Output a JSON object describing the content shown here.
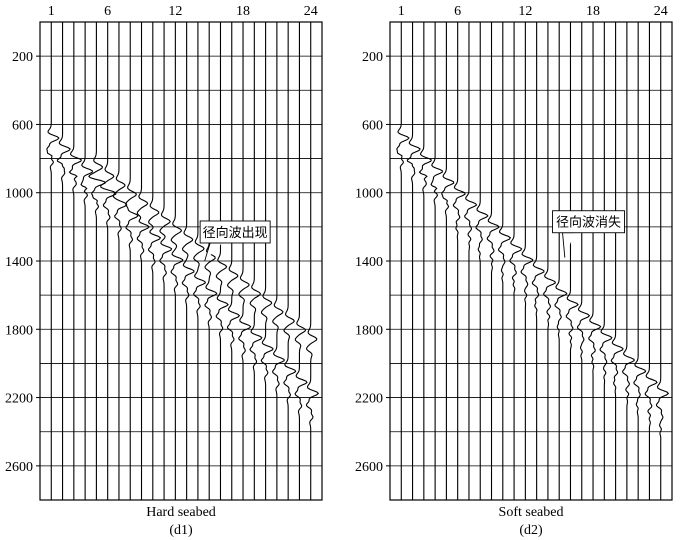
{
  "chart_data": [
    {
      "type": "seismic-wiggle",
      "panel_label": "(d1)",
      "caption": "Hard seabed",
      "x_ticks": [
        "1",
        "6",
        "12",
        "18",
        "24"
      ],
      "y_ticks": [
        "200",
        "600",
        "1000",
        "1400",
        "1800",
        "2200",
        "2600"
      ],
      "traces": 24,
      "xlim": [
        0,
        25
      ],
      "ylim": [
        0,
        2800
      ],
      "y_reversed": true,
      "grid": true,
      "direct_arrival": {
        "trace_start": 1,
        "time_start": 680,
        "time_step": 65
      },
      "radial_wave": {
        "present": true,
        "trace_start": 5,
        "time_start": 850,
        "time_step": 53
      },
      "annotation": {
        "text": "径向波出现",
        "trace": 14.6,
        "time": 1400
      }
    },
    {
      "type": "seismic-wiggle",
      "panel_label": "(d2)",
      "caption": "Soft seabed",
      "x_ticks": [
        "1",
        "6",
        "12",
        "18",
        "24"
      ],
      "y_ticks": [
        "200",
        "600",
        "1000",
        "1400",
        "1800",
        "2200",
        "2600"
      ],
      "traces": 24,
      "xlim": [
        0,
        25
      ],
      "ylim": [
        0,
        2800
      ],
      "y_reversed": true,
      "grid": true,
      "direct_arrival": {
        "trace_start": 1,
        "time_start": 680,
        "time_step": 65
      },
      "radial_wave": {
        "present": false
      },
      "annotation": {
        "text": "径向波消失",
        "trace": 15.5,
        "time": 1380
      }
    }
  ]
}
